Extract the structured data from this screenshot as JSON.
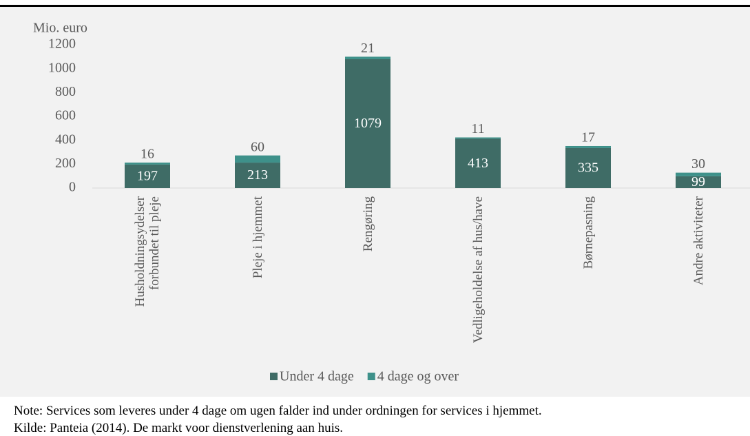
{
  "chart_data": {
    "type": "stacked_bar",
    "y_label": "Mio. euro",
    "categories": [
      "Husholdningsydelser forbundet til pleje",
      "Pleje i hjemmet",
      "Rengøring",
      "Vedligeholdelse af hus/have",
      "Børnepasning",
      "Andre aktiviteter"
    ],
    "series": [
      {
        "name": "Under 4 dage",
        "color": "#3f6c66",
        "values": [
          197,
          213,
          1079,
          413,
          335,
          99
        ]
      },
      {
        "name": "4 dage og over",
        "color": "#3e918a",
        "values": [
          16,
          60,
          21,
          11,
          17,
          30
        ]
      }
    ],
    "ylim": [
      0,
      1200
    ],
    "yticks": [
      0,
      200,
      400,
      600,
      800,
      1000,
      1200
    ],
    "legend": "bottom",
    "note": "Note: Services som leveres under 4 dage om ugen falder ind under ordningen for services i hjemmet.",
    "source": "Kilde: Panteia (2014). De markt voor dienstverlening aan huis."
  }
}
